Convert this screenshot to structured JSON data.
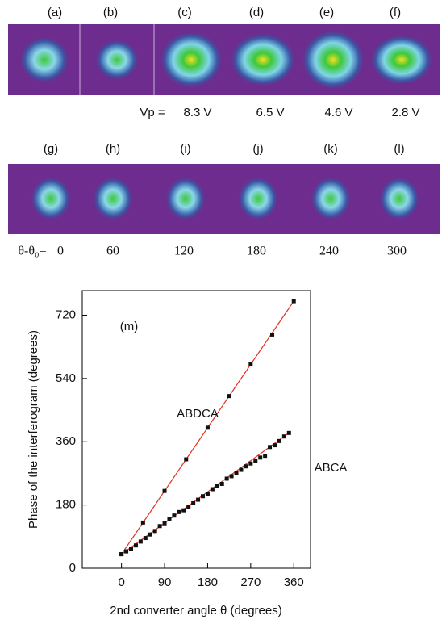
{
  "panels_top": {
    "labels": [
      "(a)",
      "(b)",
      "(c)",
      "(d)",
      "(e)",
      "(f)"
    ],
    "vp_prefix": "Vp =",
    "vp_values": [
      "8.3 V",
      "6.5 V",
      "4.6 V",
      "2.8 V"
    ]
  },
  "panels_bottom": {
    "labels": [
      "(g)",
      "(h)",
      "(i)",
      "(j)",
      "(k)",
      "(l)"
    ],
    "angle_prefix": "θ-θ₀=",
    "angles": [
      "0",
      "60",
      "120",
      "180",
      "240",
      "300"
    ]
  },
  "chart_data": {
    "type": "scatter",
    "title": "(m)",
    "x_label": "2nd converter angle θ (degrees)",
    "y_label": "Phase of the interferogram (degrees)",
    "xlim": [
      -82,
      395
    ],
    "ylim": [
      0,
      790
    ],
    "xticks": [
      0,
      90,
      180,
      270,
      360
    ],
    "yticks": [
      0,
      180,
      360,
      540,
      720
    ],
    "series": [
      {
        "name": "ABDCA",
        "color": "#e03020",
        "x": [
          0,
          45,
          90,
          135,
          180,
          225,
          270,
          315,
          360
        ],
        "values": [
          40,
          130,
          220,
          310,
          400,
          490,
          580,
          665,
          760
        ]
      },
      {
        "name": "ABCA",
        "color": "#e03020",
        "x": [
          0,
          10,
          20,
          30,
          40,
          50,
          60,
          70,
          80,
          90,
          100,
          110,
          120,
          130,
          140,
          150,
          160,
          170,
          180,
          190,
          200,
          210,
          220,
          230,
          240,
          250,
          260,
          270,
          280,
          290,
          300,
          310,
          320,
          330,
          340,
          350
        ],
        "values": [
          40,
          48,
          56,
          65,
          76,
          86,
          96,
          106,
          120,
          128,
          140,
          150,
          160,
          165,
          175,
          185,
          195,
          205,
          212,
          225,
          235,
          240,
          255,
          262,
          270,
          280,
          290,
          298,
          305,
          315,
          320,
          345,
          350,
          362,
          375,
          385
        ]
      }
    ]
  }
}
